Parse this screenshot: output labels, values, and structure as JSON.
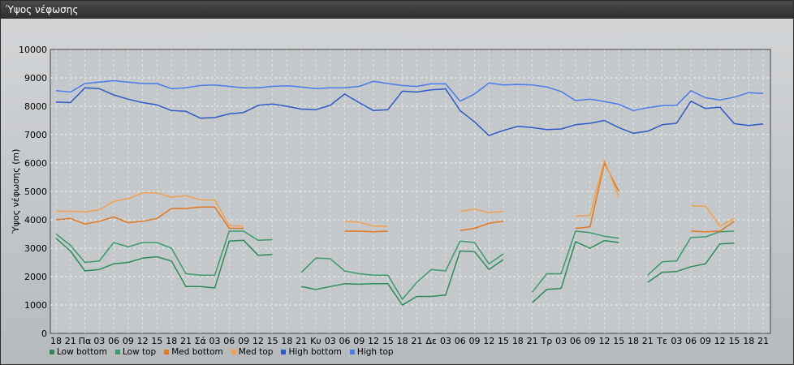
{
  "window": {
    "title": "Ύψος νέφωσης"
  },
  "chart_data": {
    "type": "line",
    "ylabel": "Ύψος νέφωσης (m)",
    "xlabel": "",
    "ylim": [
      0,
      10000
    ],
    "yticks": [
      "0",
      "1000",
      "2000",
      "3000",
      "4000",
      "5000",
      "6000",
      "7000",
      "8000",
      "9000",
      "10000"
    ],
    "grid": true,
    "legend_position": "bottom-left",
    "categories": [
      "18",
      "21",
      "Πα",
      "03",
      "06",
      "09",
      "12",
      "15",
      "18",
      "21",
      "Σά",
      "03",
      "06",
      "09",
      "12",
      "15",
      "18",
      "21",
      "Κυ",
      "03",
      "06",
      "09",
      "12",
      "15",
      "18",
      "21",
      "Δε",
      "03",
      "06",
      "09",
      "12",
      "15",
      "18",
      "21",
      "Τρ",
      "03",
      "06",
      "09",
      "12",
      "15",
      "18",
      "21",
      "Τε",
      "03",
      "06",
      "09",
      "12",
      "15",
      "18",
      "21"
    ],
    "series": [
      {
        "name": "Low bottom",
        "color": "#2e8b57",
        "values": [
          3350,
          2900,
          2200,
          2250,
          2450,
          2500,
          2650,
          2700,
          2550,
          1650,
          1650,
          1600,
          3250,
          3280,
          2750,
          2780,
          null,
          1650,
          1550,
          1650,
          1750,
          1730,
          1750,
          1750,
          1000,
          1300,
          1300,
          1350,
          2900,
          2880,
          2250,
          2600,
          null,
          1080,
          1550,
          1580,
          3230,
          3000,
          3270,
          3200,
          null,
          1800,
          2150,
          2180,
          2350,
          2450,
          3150,
          3180,
          null,
          null
        ]
      },
      {
        "name": "Low top",
        "color": "#3c9a6a",
        "values": [
          3500,
          3100,
          2500,
          2550,
          3200,
          3050,
          3200,
          3200,
          3000,
          2100,
          2050,
          2050,
          3600,
          3600,
          3280,
          3300,
          null,
          2150,
          2650,
          2630,
          2200,
          2100,
          2050,
          2050,
          1200,
          1800,
          2250,
          2200,
          3250,
          3200,
          2450,
          2800,
          null,
          1450,
          2100,
          2100,
          3600,
          3550,
          3420,
          3350,
          null,
          2050,
          2520,
          2550,
          3380,
          3400,
          3580,
          3600,
          null,
          null
        ]
      },
      {
        "name": "Med bottom",
        "color": "#e07820",
        "values": [
          4000,
          4050,
          3850,
          3950,
          4100,
          3900,
          3950,
          4050,
          4400,
          4400,
          4450,
          4450,
          3700,
          3700,
          null,
          null,
          null,
          null,
          null,
          null,
          3600,
          3600,
          3580,
          3600,
          null,
          null,
          null,
          null,
          3620,
          3700,
          3880,
          3950,
          null,
          null,
          null,
          null,
          3700,
          3750,
          6000,
          5000,
          null,
          null,
          null,
          null,
          3600,
          3580,
          3600,
          3950,
          null,
          null
        ]
      },
      {
        "name": "Med top",
        "color": "#f0a050",
        "values": [
          4300,
          4300,
          4280,
          4350,
          4650,
          4750,
          4950,
          4950,
          4800,
          4850,
          4700,
          4700,
          3800,
          3780,
          null,
          null,
          null,
          null,
          null,
          null,
          3950,
          3920,
          3780,
          3780,
          null,
          null,
          null,
          null,
          4300,
          4380,
          4250,
          4300,
          null,
          null,
          null,
          null,
          4130,
          4150,
          6100,
          4800,
          null,
          null,
          null,
          null,
          4500,
          4480,
          3780,
          4050,
          null,
          null
        ]
      },
      {
        "name": "High bottom",
        "color": "#3058c8",
        "values": [
          8150,
          8130,
          8650,
          8620,
          8400,
          8250,
          8130,
          8050,
          7850,
          7820,
          7580,
          7600,
          7730,
          7780,
          8030,
          8080,
          8000,
          7900,
          7880,
          8030,
          8430,
          8130,
          7850,
          7880,
          8530,
          8500,
          8580,
          8610,
          7850,
          7450,
          6970,
          7150,
          7290,
          7250,
          7180,
          7200,
          7350,
          7400,
          7500,
          7250,
          7050,
          7120,
          7350,
          7400,
          8180,
          7920,
          7970,
          7390,
          7320,
          7380
        ]
      },
      {
        "name": "High top",
        "color": "#4a7ae8",
        "values": [
          8550,
          8500,
          8800,
          8850,
          8900,
          8850,
          8800,
          8800,
          8620,
          8650,
          8730,
          8750,
          8700,
          8650,
          8650,
          8700,
          8720,
          8680,
          8620,
          8650,
          8650,
          8700,
          8880,
          8800,
          8730,
          8700,
          8790,
          8790,
          8180,
          8430,
          8820,
          8750,
          8770,
          8750,
          8680,
          8520,
          8200,
          8250,
          8170,
          8070,
          7850,
          7950,
          8020,
          8030,
          8550,
          8300,
          8220,
          8320,
          8480,
          8450
        ]
      }
    ]
  }
}
